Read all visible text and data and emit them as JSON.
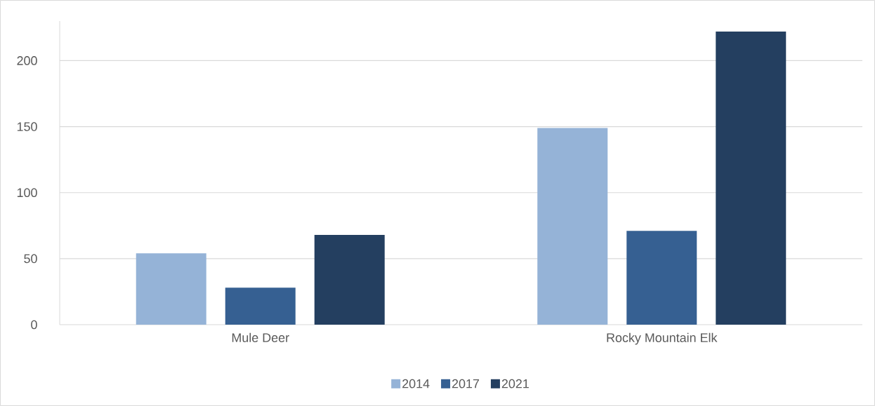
{
  "chart_data": {
    "type": "bar",
    "categories": [
      "Mule Deer",
      "Rocky Mountain Elk"
    ],
    "series": [
      {
        "name": "2014",
        "color": "#95b3d7",
        "values": [
          54,
          149
        ]
      },
      {
        "name": "2017",
        "color": "#366092",
        "values": [
          28,
          71
        ]
      },
      {
        "name": "2021",
        "color": "#243f60",
        "values": [
          68,
          222
        ]
      }
    ],
    "ylim": [
      0,
      230
    ],
    "yticks": [
      0,
      50,
      100,
      150,
      200
    ],
    "grid": "y",
    "legend": "bottom"
  }
}
